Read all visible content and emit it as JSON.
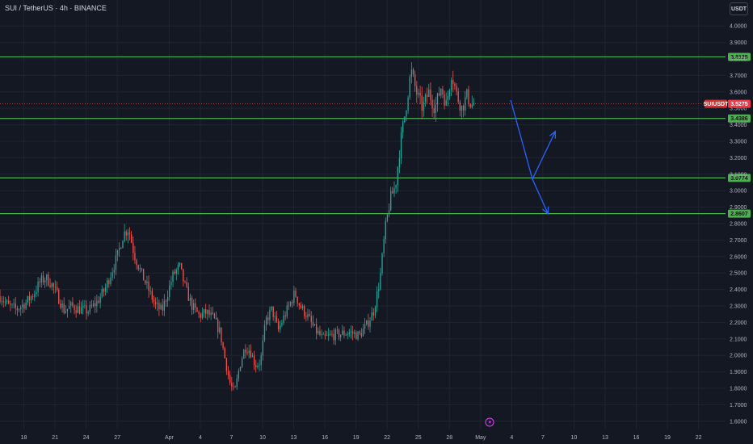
{
  "header": {
    "title": "SUI / TetherUS · 4h · BINANCE",
    "currency": "USDT"
  },
  "colors": {
    "background": "#141823",
    "grid": "#1f2430",
    "up": "#26a69a",
    "down": "#ef5350",
    "level": "#4caf50",
    "level_label_bg": "#4caf50",
    "projection": "#2962ff",
    "symbol_label_bg": "#d32f2f",
    "price_label_bg": "#f23645",
    "event_icon": "#e040fb"
  },
  "chart_data": {
    "type": "candlestick",
    "symbol": "SUI / TetherUS",
    "timeframe": "4h",
    "exchange": "BINANCE",
    "y_ticks": [
      "1.6000",
      "1.7000",
      "1.8000",
      "1.9000",
      "2.0000",
      "2.1000",
      "2.2000",
      "2.3000",
      "2.4000",
      "2.5000",
      "2.6000",
      "2.7000",
      "2.8000",
      "2.9000",
      "3.0000",
      "3.1000",
      "3.2000",
      "3.3000",
      "3.4000",
      "3.5000",
      "3.6000",
      "3.7000",
      "3.8000",
      "3.9000",
      "4.0000"
    ],
    "ylim": [
      1.55,
      4.05
    ],
    "x_ticks": [
      {
        "label": "18",
        "day": 18
      },
      {
        "label": "21",
        "day": 21
      },
      {
        "label": "24",
        "day": 24
      },
      {
        "label": "27",
        "day": 27
      },
      {
        "label": "Apr",
        "day": 32
      },
      {
        "label": "4",
        "day": 35
      },
      {
        "label": "7",
        "day": 38
      },
      {
        "label": "10",
        "day": 41
      },
      {
        "label": "13",
        "day": 44
      },
      {
        "label": "16",
        "day": 47
      },
      {
        "label": "19",
        "day": 50
      },
      {
        "label": "22",
        "day": 53
      },
      {
        "label": "25",
        "day": 56
      },
      {
        "label": "28",
        "day": 59
      },
      {
        "label": "May",
        "day": 62
      },
      {
        "label": "4",
        "day": 65
      },
      {
        "label": "7",
        "day": 68
      },
      {
        "label": "10",
        "day": 71
      },
      {
        "label": "13",
        "day": 74
      },
      {
        "label": "16",
        "day": 77
      },
      {
        "label": "19",
        "day": 80
      },
      {
        "label": "22",
        "day": 83
      }
    ],
    "xlim": [
      15.7,
      85.6
    ],
    "levels": [
      "3.8125",
      "3.4386",
      "3.0774",
      "2.8607"
    ],
    "symbol_label": "SUIUSDT",
    "last_price": "3.5275",
    "projection": [
      {
        "day": 64.9,
        "price": 3.55
      },
      {
        "day": 67.0,
        "price": 3.07
      },
      {
        "day": 69.2,
        "price": 3.36
      },
      {
        "day": 67.0,
        "price": 3.07
      },
      {
        "day": 68.5,
        "price": 2.86
      }
    ],
    "close_path": [
      {
        "day": 15.7,
        "v": 2.36
      },
      {
        "day": 16.5,
        "v": 2.3
      },
      {
        "day": 17.3,
        "v": 2.28
      },
      {
        "day": 18.2,
        "v": 2.32
      },
      {
        "day": 19.0,
        "v": 2.38
      },
      {
        "day": 19.6,
        "v": 2.45
      },
      {
        "day": 20.1,
        "v": 2.47
      },
      {
        "day": 20.6,
        "v": 2.44
      },
      {
        "day": 21.2,
        "v": 2.37
      },
      {
        "day": 21.9,
        "v": 2.27
      },
      {
        "day": 22.6,
        "v": 2.3
      },
      {
        "day": 23.3,
        "v": 2.28
      },
      {
        "day": 24.2,
        "v": 2.27
      },
      {
        "day": 25.0,
        "v": 2.32
      },
      {
        "day": 25.8,
        "v": 2.4
      },
      {
        "day": 26.4,
        "v": 2.5
      },
      {
        "day": 27.0,
        "v": 2.6
      },
      {
        "day": 27.6,
        "v": 2.74
      },
      {
        "day": 28.1,
        "v": 2.77
      },
      {
        "day": 28.6,
        "v": 2.62
      },
      {
        "day": 29.3,
        "v": 2.5
      },
      {
        "day": 30.0,
        "v": 2.4
      },
      {
        "day": 30.7,
        "v": 2.3
      },
      {
        "day": 31.3,
        "v": 2.27
      },
      {
        "day": 31.8,
        "v": 2.37
      },
      {
        "day": 32.4,
        "v": 2.49
      },
      {
        "day": 33.0,
        "v": 2.54
      },
      {
        "day": 33.6,
        "v": 2.4
      },
      {
        "day": 34.2,
        "v": 2.3
      },
      {
        "day": 34.9,
        "v": 2.24
      },
      {
        "day": 35.6,
        "v": 2.26
      },
      {
        "day": 36.3,
        "v": 2.22
      },
      {
        "day": 36.9,
        "v": 2.14
      },
      {
        "day": 37.4,
        "v": 1.97
      },
      {
        "day": 37.9,
        "v": 1.82
      },
      {
        "day": 38.3,
        "v": 1.77
      },
      {
        "day": 38.8,
        "v": 1.94
      },
      {
        "day": 39.3,
        "v": 2.05
      },
      {
        "day": 39.8,
        "v": 2.03
      },
      {
        "day": 40.3,
        "v": 1.94
      },
      {
        "day": 40.8,
        "v": 1.96
      },
      {
        "day": 41.3,
        "v": 2.21
      },
      {
        "day": 41.9,
        "v": 2.28
      },
      {
        "day": 42.5,
        "v": 2.15
      },
      {
        "day": 43.1,
        "v": 2.24
      },
      {
        "day": 43.7,
        "v": 2.32
      },
      {
        "day": 44.1,
        "v": 2.38
      },
      {
        "day": 44.6,
        "v": 2.3
      },
      {
        "day": 45.3,
        "v": 2.24
      },
      {
        "day": 46.0,
        "v": 2.16
      },
      {
        "day": 46.8,
        "v": 2.1
      },
      {
        "day": 47.6,
        "v": 2.12
      },
      {
        "day": 48.5,
        "v": 2.13
      },
      {
        "day": 49.4,
        "v": 2.14
      },
      {
        "day": 50.3,
        "v": 2.12
      },
      {
        "day": 51.0,
        "v": 2.18
      },
      {
        "day": 51.7,
        "v": 2.27
      },
      {
        "day": 52.3,
        "v": 2.46
      },
      {
        "day": 52.8,
        "v": 2.76
      },
      {
        "day": 53.3,
        "v": 2.95
      },
      {
        "day": 53.8,
        "v": 3.03
      },
      {
        "day": 54.3,
        "v": 3.3
      },
      {
        "day": 54.8,
        "v": 3.5
      },
      {
        "day": 55.3,
        "v": 3.73
      },
      {
        "day": 55.8,
        "v": 3.6
      },
      {
        "day": 56.4,
        "v": 3.5
      },
      {
        "day": 57.0,
        "v": 3.6
      },
      {
        "day": 57.6,
        "v": 3.5
      },
      {
        "day": 58.2,
        "v": 3.63
      },
      {
        "day": 58.7,
        "v": 3.52
      },
      {
        "day": 59.2,
        "v": 3.72
      },
      {
        "day": 59.7,
        "v": 3.58
      },
      {
        "day": 60.2,
        "v": 3.5
      },
      {
        "day": 60.7,
        "v": 3.58
      },
      {
        "day": 61.1,
        "v": 3.52
      },
      {
        "day": 61.5,
        "v": 3.53
      }
    ]
  }
}
